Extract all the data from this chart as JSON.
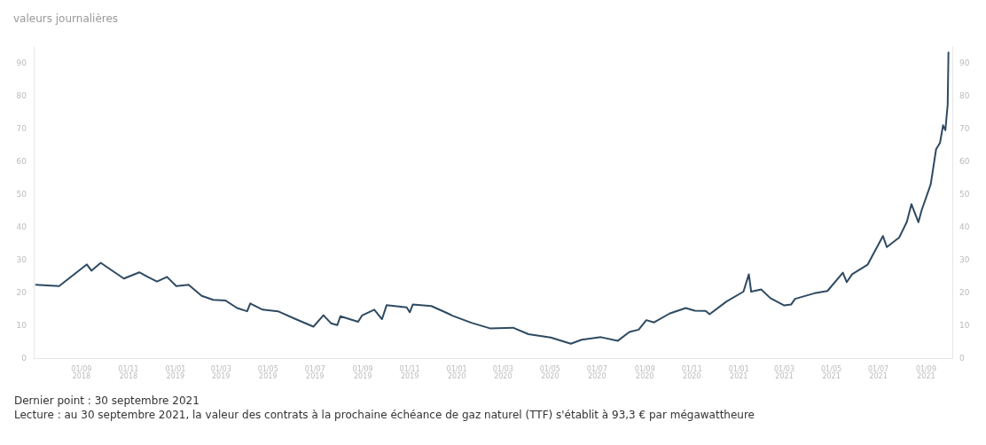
{
  "chart_data": {
    "type": "line",
    "title": "valeurs journalières",
    "annotations": [
      "Dernier point : 30 septembre 2021",
      "Lecture : au 30 septembre 2021, la valeur des contrats à la prochaine échéance de gaz naturel (TTF) s'établit à 93,3 € par mégawattheure"
    ],
    "x": [
      "2018-07-04",
      "2018-08-03",
      "2018-09-08",
      "2018-09-14",
      "2018-09-26",
      "2018-10-26",
      "2018-11-15",
      "2018-11-26",
      "2018-12-08",
      "2018-12-21",
      "2019-01-02",
      "2019-01-18",
      "2019-02-04",
      "2019-02-19",
      "2019-03-07",
      "2019-03-22",
      "2019-04-04",
      "2019-04-08",
      "2019-04-24",
      "2019-05-14",
      "2019-06-06",
      "2019-06-29",
      "2019-07-12",
      "2019-07-22",
      "2019-07-30",
      "2019-08-03",
      "2019-08-26",
      "2019-08-31",
      "2019-09-16",
      "2019-09-26",
      "2019-10-02",
      "2019-10-28",
      "2019-11-01",
      "2019-11-05",
      "2019-11-29",
      "2019-12-19",
      "2019-12-27",
      "2020-01-20",
      "2020-02-13",
      "2020-03-14",
      "2020-04-03",
      "2020-05-02",
      "2020-05-28",
      "2020-06-11",
      "2020-07-06",
      "2020-07-28",
      "2020-08-12",
      "2020-08-24",
      "2020-09-03",
      "2020-09-13",
      "2020-10-03",
      "2020-10-24",
      "2020-11-05",
      "2020-11-19",
      "2020-11-24",
      "2020-12-16",
      "2021-01-07",
      "2021-01-14",
      "2021-01-17",
      "2021-01-30",
      "2021-02-11",
      "2021-03-01",
      "2021-03-10",
      "2021-03-15",
      "2021-04-09",
      "2021-04-26",
      "2021-05-16",
      "2021-05-21",
      "2021-05-28",
      "2021-06-17",
      "2021-07-07",
      "2021-07-12",
      "2021-07-28",
      "2021-08-07",
      "2021-08-13",
      "2021-08-22",
      "2021-08-26",
      "2021-09-07",
      "2021-09-14",
      "2021-09-19",
      "2021-09-23",
      "2021-09-26",
      "2021-09-29",
      "2021-09-30"
    ],
    "series": [
      {
        "color": "#2e4a62",
        "values": [
          22.4,
          22.0,
          28.6,
          26.7,
          29.1,
          24.3,
          26.2,
          24.8,
          23.4,
          24.8,
          22.0,
          22.4,
          19.0,
          17.8,
          17.6,
          15.3,
          14.3,
          16.7,
          14.8,
          14.3,
          11.9,
          9.6,
          13.1,
          10.6,
          10.1,
          12.8,
          11.1,
          13.0,
          14.8,
          11.9,
          16.2,
          15.5,
          14.0,
          16.4,
          15.9,
          13.8,
          12.9,
          10.8,
          9.1,
          9.3,
          7.3,
          6.3,
          4.4,
          5.6,
          6.4,
          5.3,
          8.0,
          8.7,
          11.6,
          10.9,
          13.6,
          15.3,
          14.5,
          14.4,
          13.4,
          17.3,
          20.3,
          25.6,
          20.3,
          21.0,
          18.3,
          16.1,
          16.4,
          18.1,
          19.8,
          20.5,
          26.1,
          23.2,
          25.6,
          28.5,
          37.3,
          33.9,
          36.8,
          41.6,
          47.0,
          41.5,
          45.0,
          53.1,
          63.8,
          65.7,
          71.1,
          69.6,
          77.4,
          93.3
        ]
      }
    ],
    "xlim": [
      "2018-07-01",
      "2021-10-05"
    ],
    "xticks": [
      {
        "value": "2018-09-01",
        "label": "01/09 2018"
      },
      {
        "value": "2018-11-01",
        "label": "01/11 2018"
      },
      {
        "value": "2019-01-01",
        "label": "01/01 2019"
      },
      {
        "value": "2019-03-01",
        "label": "01/03 2019"
      },
      {
        "value": "2019-05-01",
        "label": "01/05 2019"
      },
      {
        "value": "2019-07-01",
        "label": "01/07 2019"
      },
      {
        "value": "2019-09-01",
        "label": "01/09 2019"
      },
      {
        "value": "2019-11-01",
        "label": "01/11 2019"
      },
      {
        "value": "2020-01-01",
        "label": "01/01 2020"
      },
      {
        "value": "2020-03-01",
        "label": "01/03 2020"
      },
      {
        "value": "2020-05-01",
        "label": "01/05 2020"
      },
      {
        "value": "2020-07-01",
        "label": "01/07 2020"
      },
      {
        "value": "2020-09-01",
        "label": "01/09 2020"
      },
      {
        "value": "2020-11-01",
        "label": "01/11 2020"
      },
      {
        "value": "2021-01-01",
        "label": "01/01 2021"
      },
      {
        "value": "2021-03-01",
        "label": "01/03 2021"
      },
      {
        "value": "2021-05-01",
        "label": "01/05 2021"
      },
      {
        "value": "2021-07-01",
        "label": "01/07 2021"
      },
      {
        "value": "2021-09-01",
        "label": "01/09 2021"
      }
    ],
    "ylim": [
      0,
      95
    ],
    "yticks": [
      0,
      10,
      20,
      30,
      40,
      50,
      60,
      70,
      80,
      90
    ],
    "y2lim": [
      0,
      95
    ],
    "y2ticks": [
      0,
      10,
      20,
      30,
      40,
      50,
      60,
      70,
      80,
      90
    ],
    "grid": false,
    "marker": "none",
    "line_style": "solid"
  }
}
